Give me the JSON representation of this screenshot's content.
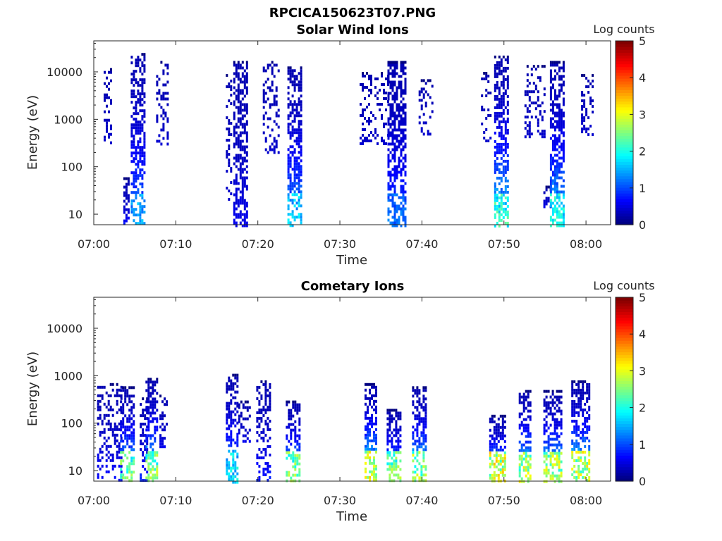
{
  "figure_title": "RPCICA150623T07.PNG",
  "chart_data": [
    {
      "type": "heatmap",
      "title": "Solar Wind Ions",
      "xlabel": "Time",
      "ylabel": "Energy (eV)",
      "x_ticks": [
        "07:00",
        "07:10",
        "07:20",
        "07:30",
        "07:40",
        "07:50",
        "08:00"
      ],
      "x_range_minutes": [
        0,
        63
      ],
      "y_scale": "log",
      "y_ticks": [
        10,
        100,
        1000,
        10000
      ],
      "y_tick_labels": [
        "10",
        "100",
        "1000",
        "10000"
      ],
      "y_range": [
        6,
        45000
      ],
      "colorbar": {
        "label": "Log counts",
        "range": [
          0,
          5
        ],
        "ticks": [
          "0",
          "1",
          "2",
          "3",
          "4",
          "5"
        ],
        "colormap": "jet"
      },
      "bursts": [
        {
          "t_min": 1.2,
          "dur": 1.0,
          "e_low": 300,
          "e_high": 12000,
          "peak_log": 0.2,
          "density": 0.35
        },
        {
          "t_min": 3.6,
          "dur": 0.7,
          "e_low": 6,
          "e_high": 60,
          "peak_log": 0.6,
          "density": 0.6
        },
        {
          "t_min": 4.5,
          "dur": 1.7,
          "e_low": 6,
          "e_high": 25000,
          "peak_log": 1.6,
          "density": 0.55
        },
        {
          "t_min": 7.6,
          "dur": 1.3,
          "e_low": 300,
          "e_high": 17000,
          "peak_log": 0.2,
          "density": 0.3
        },
        {
          "t_min": 16.1,
          "dur": 0.6,
          "e_low": 20,
          "e_high": 9000,
          "peak_log": 0.2,
          "density": 0.25
        },
        {
          "t_min": 17.0,
          "dur": 1.8,
          "e_low": 6,
          "e_high": 17000,
          "peak_log": 0.4,
          "density": 0.6
        },
        {
          "t_min": 20.6,
          "dur": 2.0,
          "e_low": 200,
          "e_high": 17000,
          "peak_log": 0.2,
          "density": 0.3
        },
        {
          "t_min": 23.6,
          "dur": 1.7,
          "e_low": 6,
          "e_high": 13000,
          "peak_log": 1.8,
          "density": 0.6
        },
        {
          "t_min": 32.4,
          "dur": 3.4,
          "e_low": 300,
          "e_high": 10000,
          "peak_log": 0.2,
          "density": 0.25
        },
        {
          "t_min": 35.8,
          "dur": 2.2,
          "e_low": 6,
          "e_high": 17000,
          "peak_log": 1.2,
          "density": 0.6
        },
        {
          "t_min": 39.6,
          "dur": 1.6,
          "e_low": 500,
          "e_high": 7000,
          "peak_log": 0.2,
          "density": 0.3
        },
        {
          "t_min": 47.2,
          "dur": 1.1,
          "e_low": 300,
          "e_high": 10000,
          "peak_log": 0.2,
          "density": 0.2
        },
        {
          "t_min": 48.8,
          "dur": 1.7,
          "e_low": 6,
          "e_high": 22000,
          "peak_log": 2.4,
          "density": 0.6
        },
        {
          "t_min": 52.5,
          "dur": 2.5,
          "e_low": 400,
          "e_high": 14000,
          "peak_log": 0.2,
          "density": 0.3
        },
        {
          "t_min": 54.8,
          "dur": 0.8,
          "e_low": 12,
          "e_high": 40,
          "peak_log": 0.6,
          "density": 0.6
        },
        {
          "t_min": 55.6,
          "dur": 1.8,
          "e_low": 6,
          "e_high": 17000,
          "peak_log": 2.2,
          "density": 0.6
        },
        {
          "t_min": 59.4,
          "dur": 1.5,
          "e_low": 500,
          "e_high": 9000,
          "peak_log": 0.2,
          "density": 0.3
        }
      ]
    },
    {
      "type": "heatmap",
      "title": "Cometary Ions",
      "xlabel": "Time",
      "ylabel": "Energy (eV)",
      "x_ticks": [
        "07:00",
        "07:10",
        "07:20",
        "07:30",
        "07:40",
        "07:50",
        "08:00"
      ],
      "x_range_minutes": [
        0,
        63
      ],
      "y_scale": "log",
      "y_ticks": [
        10,
        100,
        1000,
        10000
      ],
      "y_tick_labels": [
        "10",
        "100",
        "1000",
        "10000"
      ],
      "y_range": [
        6,
        45000
      ],
      "colorbar": {
        "label": "Log counts",
        "range": [
          0,
          5
        ],
        "ticks": [
          "0",
          "1",
          "2",
          "3",
          "4",
          "5"
        ],
        "colormap": "jet"
      },
      "bursts": [
        {
          "t_min": 0.4,
          "dur": 3.0,
          "e_low": 6,
          "e_high": 700,
          "peak_log": 0.6,
          "density": 0.3
        },
        {
          "t_min": 3.2,
          "dur": 1.6,
          "e_low": 6,
          "e_high": 600,
          "peak_log": 2.8,
          "density": 0.55
        },
        {
          "t_min": 5.6,
          "dur": 1.0,
          "e_low": 6,
          "e_high": 350,
          "peak_log": 0.8,
          "density": 0.45
        },
        {
          "t_min": 6.3,
          "dur": 1.5,
          "e_low": 6,
          "e_high": 900,
          "peak_log": 3.0,
          "density": 0.55
        },
        {
          "t_min": 8.0,
          "dur": 1.0,
          "e_low": 30,
          "e_high": 400,
          "peak_log": 0.4,
          "density": 0.35
        },
        {
          "t_min": 16.1,
          "dur": 1.4,
          "e_low": 6,
          "e_high": 1100,
          "peak_log": 2.0,
          "density": 0.5
        },
        {
          "t_min": 17.6,
          "dur": 1.5,
          "e_low": 40,
          "e_high": 300,
          "peak_log": 0.4,
          "density": 0.3
        },
        {
          "t_min": 19.8,
          "dur": 1.6,
          "e_low": 6,
          "e_high": 800,
          "peak_log": 0.7,
          "density": 0.45
        },
        {
          "t_min": 23.4,
          "dur": 1.6,
          "e_low": 6,
          "e_high": 300,
          "peak_log": 3.0,
          "density": 0.55
        },
        {
          "t_min": 33.0,
          "dur": 1.4,
          "e_low": 6,
          "e_high": 700,
          "peak_log": 3.6,
          "density": 0.55
        },
        {
          "t_min": 35.7,
          "dur": 1.6,
          "e_low": 6,
          "e_high": 200,
          "peak_log": 3.0,
          "density": 0.55
        },
        {
          "t_min": 38.8,
          "dur": 1.8,
          "e_low": 6,
          "e_high": 600,
          "peak_log": 3.2,
          "density": 0.55
        },
        {
          "t_min": 48.2,
          "dur": 2.0,
          "e_low": 6,
          "e_high": 150,
          "peak_log": 3.6,
          "density": 0.55
        },
        {
          "t_min": 51.8,
          "dur": 1.5,
          "e_low": 6,
          "e_high": 500,
          "peak_log": 3.4,
          "density": 0.55
        },
        {
          "t_min": 54.8,
          "dur": 2.2,
          "e_low": 6,
          "e_high": 500,
          "peak_log": 3.3,
          "density": 0.55
        },
        {
          "t_min": 58.2,
          "dur": 2.2,
          "e_low": 6,
          "e_high": 800,
          "peak_log": 3.4,
          "density": 0.55
        }
      ]
    }
  ]
}
